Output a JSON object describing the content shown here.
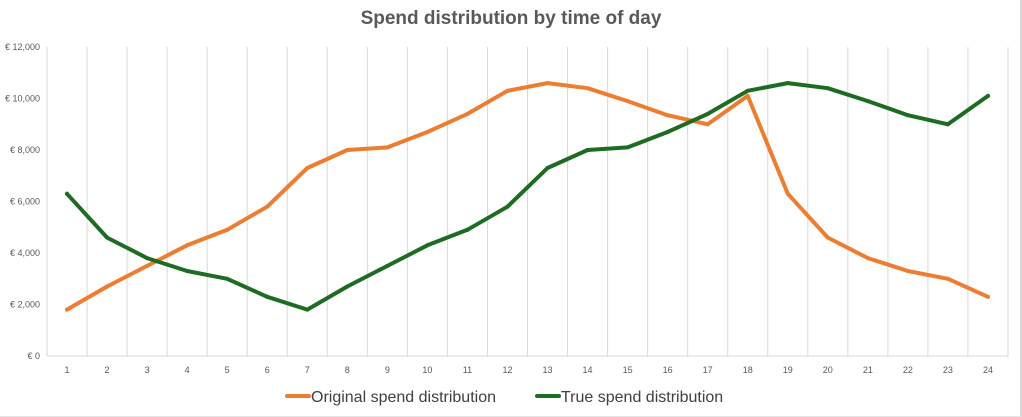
{
  "chart_data": {
    "type": "line",
    "title": "Spend distribution by time of day",
    "xlabel": "",
    "ylabel": "",
    "categories": [
      "1",
      "2",
      "3",
      "4",
      "5",
      "6",
      "7",
      "8",
      "9",
      "10",
      "11",
      "12",
      "13",
      "14",
      "15",
      "16",
      "17",
      "18",
      "19",
      "20",
      "21",
      "22",
      "23",
      "24"
    ],
    "ylim": [
      0,
      12000
    ],
    "yticks": [
      0,
      2000,
      4000,
      6000,
      8000,
      10000,
      12000
    ],
    "ytick_labels": [
      "€ 0",
      "€ 2,000",
      "€ 4,000",
      "€ 6,000",
      "€ 8,000",
      "€ 10,000",
      "€ 12,000"
    ],
    "grid": "vertical",
    "legend_position": "bottom",
    "series": [
      {
        "name": "Original spend distribution",
        "color": "#ED7D31",
        "values": [
          1800,
          2700,
          3500,
          4300,
          4900,
          5800,
          7300,
          8000,
          8100,
          8700,
          9400,
          10300,
          10600,
          10400,
          9900,
          9350,
          9000,
          10100,
          6300,
          4600,
          3800,
          3300,
          3000,
          2300
        ]
      },
      {
        "name": "True spend distribution",
        "color": "#1E6B24",
        "values": [
          6300,
          4600,
          3800,
          3300,
          3000,
          2300,
          1800,
          2700,
          3500,
          4300,
          4900,
          5800,
          7300,
          8000,
          8100,
          8700,
          9400,
          10300,
          10600,
          10400,
          9900,
          9350,
          9000,
          10100
        ]
      }
    ]
  }
}
